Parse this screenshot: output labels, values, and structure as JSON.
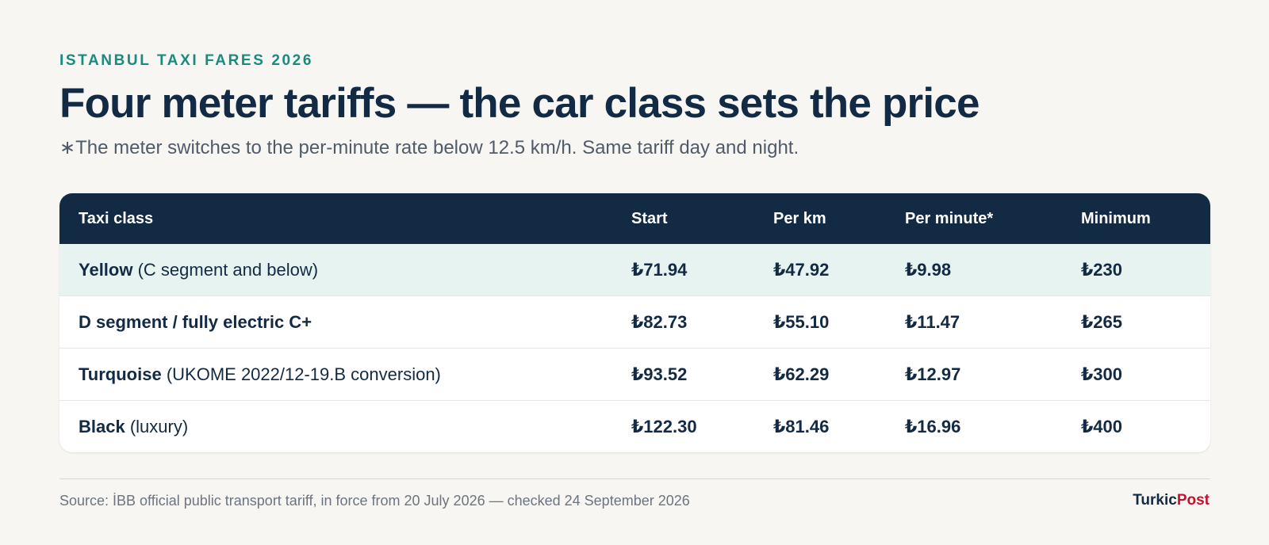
{
  "kicker": "ISTANBUL TAXI FARES 2026",
  "title": "Four meter tariffs — the car class sets the price",
  "subtitle": "∗The meter switches to the per-minute rate below 12.5 km/h. Same tariff day and night.",
  "table": {
    "headers": [
      "Taxi class",
      "Start",
      "Per km",
      "Per minute*",
      "Minimum"
    ],
    "rows": [
      {
        "name": "Yellow",
        "note": " (C segment and below)",
        "start": "₺71.94",
        "per_km": "₺47.92",
        "per_minute": "₺9.98",
        "minimum": "₺230"
      },
      {
        "name": "D segment / fully electric C+",
        "note": "",
        "start": "₺82.73",
        "per_km": "₺55.10",
        "per_minute": "₺11.47",
        "minimum": "₺265"
      },
      {
        "name": "Turquoise",
        "note": " (UKOME 2022/12-19.B conversion)",
        "start": "₺93.52",
        "per_km": "₺62.29",
        "per_minute": "₺12.97",
        "minimum": "₺300"
      },
      {
        "name": "Black",
        "note": " (luxury)",
        "start": "₺122.30",
        "per_km": "₺81.46",
        "per_minute": "₺16.96",
        "minimum": "₺400"
      }
    ]
  },
  "footer": {
    "source": "Source: İBB official public transport tariff, in force from 20 July 2026 — checked 24 September 2026",
    "brand_part1": "Turkic",
    "brand_part2": "Post"
  },
  "colors": {
    "accent": "#1b8a7f",
    "header_bg": "#132a44",
    "highlight_row": "#e6f3f0",
    "brand_red": "#c8102e"
  }
}
